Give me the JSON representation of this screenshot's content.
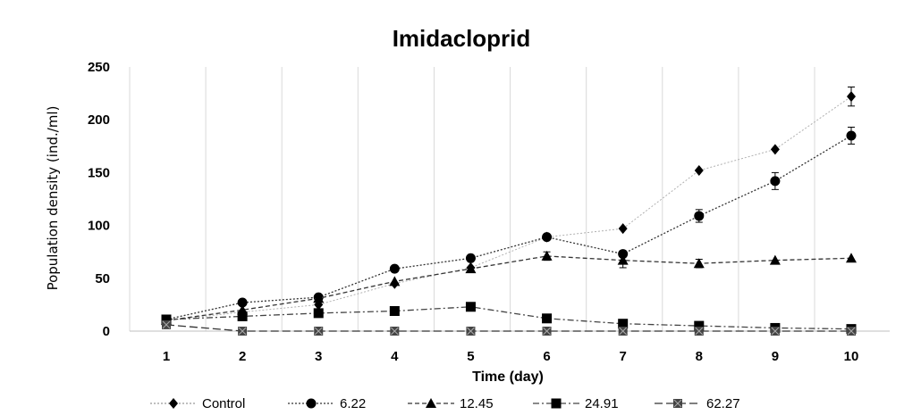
{
  "chart_data": {
    "type": "line",
    "title": "Imidacloprid",
    "xlabel": "Time (day)",
    "ylabel": "Population density (ind./ml)",
    "x": [
      1,
      2,
      3,
      4,
      5,
      6,
      7,
      8,
      9,
      10
    ],
    "xlim": [
      1,
      10
    ],
    "ylim": [
      0,
      250
    ],
    "yticks": [
      0,
      50,
      100,
      150,
      200,
      250
    ],
    "grid": "vertical",
    "legend_position": "bottom",
    "series": [
      {
        "name": "Control",
        "marker": "diamond",
        "line_style": "dotted-thin",
        "color": "#000000",
        "line_color": "#b0b0b0",
        "values": [
          10,
          18,
          25,
          45,
          60,
          89,
          97,
          152,
          172,
          222
        ],
        "errors": [
          0,
          0,
          0,
          0,
          0,
          0,
          0,
          0,
          0,
          9
        ]
      },
      {
        "name": "6.22",
        "marker": "circle",
        "line_style": "dotted",
        "color": "#000000",
        "line_color": "#333333",
        "values": [
          11,
          27,
          32,
          59,
          69,
          89,
          73,
          109,
          142,
          185
        ],
        "errors": [
          0,
          0,
          0,
          0,
          0,
          0,
          0,
          6,
          8,
          8
        ]
      },
      {
        "name": "12.45",
        "marker": "triangle",
        "line_style": "dashed",
        "color": "#000000",
        "line_color": "#333333",
        "values": [
          10,
          20,
          31,
          47,
          59,
          71,
          67,
          64,
          67,
          69
        ],
        "errors": [
          0,
          0,
          0,
          0,
          0,
          4,
          7,
          4,
          0,
          0
        ]
      },
      {
        "name": "24.91",
        "marker": "square",
        "line_style": "dash-dot",
        "color": "#000000",
        "line_color": "#444444",
        "values": [
          11,
          14,
          17,
          19,
          23,
          12,
          7,
          5,
          3,
          2
        ],
        "errors": [
          0,
          0,
          0,
          0,
          0,
          0,
          0,
          0,
          0,
          0
        ]
      },
      {
        "name": "62.27",
        "marker": "square-x",
        "line_style": "long-dash",
        "color": "#000000",
        "line_color": "#333333",
        "values": [
          6,
          0,
          0,
          0,
          0,
          0,
          0,
          0,
          0,
          0
        ],
        "errors": [
          0,
          0,
          0,
          0,
          0,
          0,
          0,
          0,
          0,
          0
        ]
      }
    ]
  }
}
